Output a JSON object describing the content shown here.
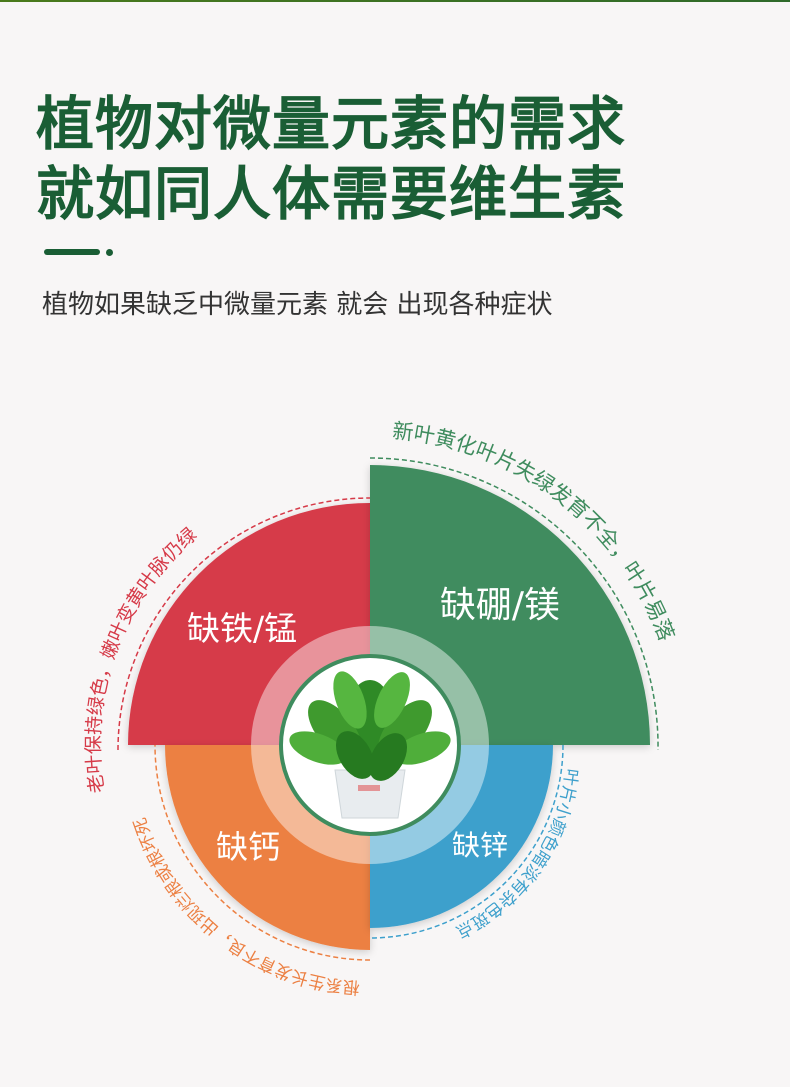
{
  "header": {
    "title_line1": "植物对微量元素的需求",
    "title_line2": "就如同人体需要维生素",
    "subtitle": "植物如果缺乏中微量元素 就会 出现各种症状"
  },
  "diagram": {
    "center_image": "potted-green-plant",
    "segments": [
      {
        "label": "缺铁/锰",
        "symptom": "老叶保持绿色，嫩叶变黄叶脉仍绿",
        "color": "#d63a48"
      },
      {
        "label": "缺硼/镁",
        "symptom": "新叶黄化叶片失绿发育不全，叶片易落",
        "color": "#3f8c5e"
      },
      {
        "label": "缺钙",
        "symptom": "根系生长发育不良，出现烂根或根坏死",
        "color": "#ec8043"
      },
      {
        "label": "缺锌",
        "symptom": "叶片小颜色暗淡有杂色斑点",
        "color": "#3ea0cc"
      }
    ]
  }
}
